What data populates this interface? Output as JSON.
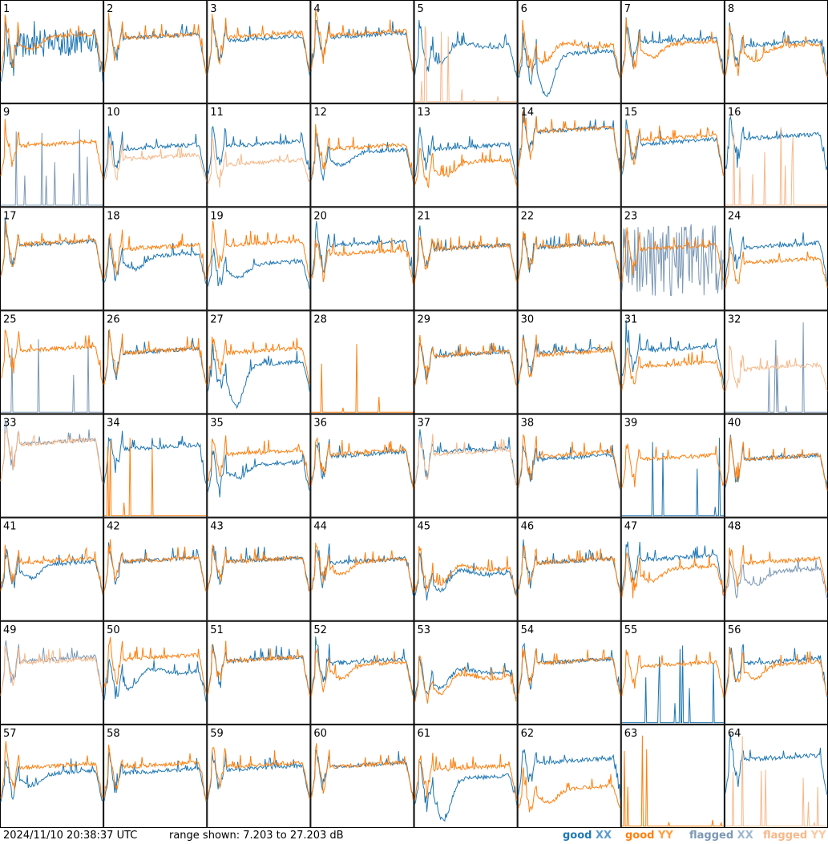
{
  "footer": {
    "timestamp": "2024/11/10 20:38:37 UTC",
    "range": "range shown: 7.203 to 27.203 dB"
  },
  "legend": [
    {
      "pre": "good ",
      "pol": "XX",
      "color": "#1f77b4",
      "pre_color": "#1f77b4",
      "pol_color": "#5a9bd0"
    },
    {
      "pre": "good ",
      "pol": "YY",
      "color": "#ff7f0e",
      "pre_color": "#ff7f0e",
      "pol_color": "#ff9f40"
    },
    {
      "pre": "flagged ",
      "pol": "XX",
      "color": "#7b98b5",
      "pre_color": "#7b98b5",
      "pol_color": "#9fb8cf"
    },
    {
      "pre": "flagged ",
      "pol": "YY",
      "color": "#f7b88a",
      "pre_color": "#f7b88a",
      "pol_color": "#f9c9a4"
    }
  ],
  "chart_data": {
    "type": "line",
    "grid": {
      "rows": 8,
      "cols": 8
    },
    "ylim_db": [
      7.203,
      27.203
    ],
    "colors": {
      "good_xx": "#1f77b4",
      "good_yy": "#ff7f0e",
      "flagged_xx": "#7b98b5",
      "flagged_yy": "#f7b88a"
    },
    "panels": [
      {
        "n": 1,
        "xx": "good",
        "yy": "good",
        "xx_shape": "spiky",
        "yy_shape": "dip",
        "xx_level": 0.55,
        "yy_level": 0.62
      },
      {
        "n": 2,
        "xx": "good",
        "yy": "good",
        "xx_shape": "normal",
        "yy_shape": "normal",
        "xx_level": 0.62,
        "yy_level": 0.62
      },
      {
        "n": 3,
        "xx": "good",
        "yy": "good",
        "xx_shape": "normal",
        "yy_shape": "normal",
        "xx_level": 0.6,
        "yy_level": 0.63
      },
      {
        "n": 4,
        "xx": "good",
        "yy": "good",
        "xx_shape": "normal",
        "yy_shape": "normal",
        "xx_level": 0.63,
        "yy_level": 0.65
      },
      {
        "n": 5,
        "xx": "good",
        "yy": "flagged",
        "xx_shape": "bowl",
        "yy_shape": "floor",
        "xx_level": 0.55,
        "yy_level": 0.02
      },
      {
        "n": 6,
        "xx": "good",
        "yy": "good",
        "xx_shape": "deepbowl",
        "yy_shape": "bowl",
        "xx_level": 0.45,
        "yy_level": 0.55
      },
      {
        "n": 7,
        "xx": "good",
        "yy": "good",
        "xx_shape": "normal",
        "yy_shape": "dip",
        "xx_level": 0.58,
        "yy_level": 0.55
      },
      {
        "n": 8,
        "xx": "good",
        "yy": "good",
        "xx_shape": "normal",
        "yy_shape": "dip",
        "xx_level": 0.55,
        "yy_level": 0.52
      },
      {
        "n": 9,
        "xx": "flagged",
        "yy": "good",
        "xx_shape": "floor",
        "yy_shape": "normal",
        "xx_level": 0.05,
        "yy_level": 0.58
      },
      {
        "n": 10,
        "xx": "good",
        "yy": "flagged",
        "xx_shape": "normal",
        "yy_shape": "normal",
        "xx_level": 0.55,
        "yy_level": 0.45
      },
      {
        "n": 11,
        "xx": "good",
        "yy": "flagged",
        "xx_shape": "normal",
        "yy_shape": "normal",
        "xx_level": 0.58,
        "yy_level": 0.4
      },
      {
        "n": 12,
        "xx": "good",
        "yy": "good",
        "xx_shape": "dip",
        "yy_shape": "normal",
        "xx_level": 0.5,
        "yy_level": 0.55
      },
      {
        "n": 13,
        "xx": "good",
        "yy": "good",
        "xx_shape": "normal",
        "yy_shape": "dip",
        "xx_level": 0.55,
        "yy_level": 0.4
      },
      {
        "n": 14,
        "xx": "good",
        "yy": "good",
        "xx_shape": "normal",
        "yy_shape": "normal",
        "xx_level": 0.72,
        "yy_level": 0.72
      },
      {
        "n": 15,
        "xx": "good",
        "yy": "good",
        "xx_shape": "normal",
        "yy_shape": "normal",
        "xx_level": 0.6,
        "yy_level": 0.64
      },
      {
        "n": 16,
        "xx": "good",
        "yy": "flagged",
        "xx_shape": "normal",
        "yy_shape": "floor",
        "xx_level": 0.65,
        "yy_level": 0.02
      },
      {
        "n": 17,
        "xx": "good",
        "yy": "good",
        "xx_shape": "normal",
        "yy_shape": "normal",
        "xx_level": 0.62,
        "yy_level": 0.63
      },
      {
        "n": 18,
        "xx": "good",
        "yy": "good",
        "xx_shape": "dip",
        "yy_shape": "normal",
        "xx_level": 0.5,
        "yy_level": 0.58
      },
      {
        "n": 19,
        "xx": "good",
        "yy": "good",
        "xx_shape": "dip",
        "yy_shape": "normal",
        "xx_level": 0.42,
        "yy_level": 0.62
      },
      {
        "n": 20,
        "xx": "good",
        "yy": "good",
        "xx_shape": "normal",
        "yy_shape": "normal",
        "xx_level": 0.62,
        "yy_level": 0.53
      },
      {
        "n": 21,
        "xx": "good",
        "yy": "good",
        "xx_shape": "normal",
        "yy_shape": "normal",
        "xx_level": 0.58,
        "yy_level": 0.58
      },
      {
        "n": 22,
        "xx": "good",
        "yy": "good",
        "xx_shape": "normal",
        "yy_shape": "normal",
        "xx_level": 0.6,
        "yy_level": 0.6
      },
      {
        "n": 23,
        "xx": "flagged",
        "yy": "good",
        "xx_shape": "noisy",
        "yy_shape": "normal",
        "xx_level": 0.4,
        "yy_level": 0.58
      },
      {
        "n": 24,
        "xx": "good",
        "yy": "good",
        "xx_shape": "normal",
        "yy_shape": "normal",
        "xx_level": 0.6,
        "yy_level": 0.45
      },
      {
        "n": 25,
        "xx": "flagged",
        "yy": "good",
        "xx_shape": "floor",
        "yy_shape": "normal",
        "xx_level": 0.02,
        "yy_level": 0.6
      },
      {
        "n": 26,
        "xx": "good",
        "yy": "good",
        "xx_shape": "normal",
        "yy_shape": "normal",
        "xx_level": 0.58,
        "yy_level": 0.58
      },
      {
        "n": 27,
        "xx": "good",
        "yy": "good",
        "xx_shape": "deepbowl",
        "yy_shape": "normal",
        "xx_level": 0.45,
        "yy_level": 0.58
      },
      {
        "n": 28,
        "xx": "none",
        "yy": "good",
        "xx_shape": "floor",
        "yy_shape": "floor",
        "xx_level": 0.0,
        "yy_level": 0.02
      },
      {
        "n": 29,
        "xx": "good",
        "yy": "good",
        "xx_shape": "normal",
        "yy_shape": "normal",
        "xx_level": 0.55,
        "yy_level": 0.55
      },
      {
        "n": 30,
        "xx": "good",
        "yy": "good",
        "xx_shape": "normal",
        "yy_shape": "normal",
        "xx_level": 0.58,
        "yy_level": 0.56
      },
      {
        "n": 31,
        "xx": "good",
        "yy": "good",
        "xx_shape": "normal",
        "yy_shape": "normal",
        "xx_level": 0.6,
        "yy_level": 0.45
      },
      {
        "n": 32,
        "xx": "flagged",
        "yy": "flagged",
        "xx_shape": "floor",
        "yy_shape": "normal",
        "xx_level": 0.02,
        "yy_level": 0.42
      },
      {
        "n": 33,
        "xx": "flagged",
        "yy": "flagged",
        "xx_shape": "normal",
        "yy_shape": "normal",
        "xx_level": 0.7,
        "yy_level": 0.7
      },
      {
        "n": 34,
        "xx": "good",
        "yy": "good",
        "xx_shape": "normal",
        "yy_shape": "floor",
        "xx_level": 0.65,
        "yy_level": 0.05
      },
      {
        "n": 35,
        "xx": "good",
        "yy": "good",
        "xx_shape": "dip",
        "yy_shape": "normal",
        "xx_level": 0.48,
        "yy_level": 0.6
      },
      {
        "n": 36,
        "xx": "good",
        "yy": "good",
        "xx_shape": "normal",
        "yy_shape": "normal",
        "xx_level": 0.58,
        "yy_level": 0.6
      },
      {
        "n": 37,
        "xx": "good",
        "yy": "flagged",
        "xx_shape": "normal",
        "yy_shape": "normal",
        "xx_level": 0.62,
        "yy_level": 0.6
      },
      {
        "n": 38,
        "xx": "good",
        "yy": "good",
        "xx_shape": "normal",
        "yy_shape": "normal",
        "xx_level": 0.55,
        "yy_level": 0.58
      },
      {
        "n": 39,
        "xx": "good",
        "yy": "good",
        "xx_shape": "floor",
        "yy_shape": "normal",
        "xx_level": 0.02,
        "yy_level": 0.55
      },
      {
        "n": 40,
        "xx": "good",
        "yy": "good",
        "xx_shape": "normal",
        "yy_shape": "normal",
        "xx_level": 0.55,
        "yy_level": 0.55
      },
      {
        "n": 41,
        "xx": "good",
        "yy": "good",
        "xx_shape": "dip",
        "yy_shape": "normal",
        "xx_level": 0.52,
        "yy_level": 0.55
      },
      {
        "n": 42,
        "xx": "good",
        "yy": "good",
        "xx_shape": "normal",
        "yy_shape": "normal",
        "xx_level": 0.56,
        "yy_level": 0.56
      },
      {
        "n": 43,
        "xx": "good",
        "yy": "good",
        "xx_shape": "normal",
        "yy_shape": "normal",
        "xx_level": 0.56,
        "yy_level": 0.56
      },
      {
        "n": 44,
        "xx": "good",
        "yy": "good",
        "xx_shape": "normal",
        "yy_shape": "dip",
        "xx_level": 0.55,
        "yy_level": 0.55
      },
      {
        "n": 45,
        "xx": "good",
        "yy": "good",
        "xx_shape": "bowl",
        "yy_shape": "bowl",
        "xx_level": 0.45,
        "yy_level": 0.5
      },
      {
        "n": 46,
        "xx": "good",
        "yy": "good",
        "xx_shape": "normal",
        "yy_shape": "normal",
        "xx_level": 0.55,
        "yy_level": 0.55
      },
      {
        "n": 47,
        "xx": "good",
        "yy": "good",
        "xx_shape": "normal",
        "yy_shape": "dip",
        "xx_level": 0.58,
        "yy_level": 0.48
      },
      {
        "n": 48,
        "xx": "flagged",
        "yy": "good",
        "xx_shape": "dip",
        "yy_shape": "normal",
        "xx_level": 0.45,
        "yy_level": 0.55
      },
      {
        "n": 49,
        "xx": "flagged",
        "yy": "flagged",
        "xx_shape": "normal",
        "yy_shape": "normal",
        "xx_level": 0.6,
        "yy_level": 0.58
      },
      {
        "n": 50,
        "xx": "good",
        "yy": "good",
        "xx_shape": "bowl",
        "yy_shape": "normal",
        "xx_level": 0.5,
        "yy_level": 0.62
      },
      {
        "n": 51,
        "xx": "good",
        "yy": "good",
        "xx_shape": "normal",
        "yy_shape": "normal",
        "xx_level": 0.6,
        "yy_level": 0.6
      },
      {
        "n": 52,
        "xx": "good",
        "yy": "good",
        "xx_shape": "normal",
        "yy_shape": "dip",
        "xx_level": 0.58,
        "yy_level": 0.55
      },
      {
        "n": 53,
        "xx": "good",
        "yy": "good",
        "xx_shape": "bowl",
        "yy_shape": "bowl",
        "xx_level": 0.5,
        "yy_level": 0.45
      },
      {
        "n": 54,
        "xx": "good",
        "yy": "good",
        "xx_shape": "normal",
        "yy_shape": "normal",
        "xx_level": 0.58,
        "yy_level": 0.58
      },
      {
        "n": 55,
        "xx": "good",
        "yy": "good",
        "xx_shape": "floor",
        "yy_shape": "normal",
        "xx_level": 0.05,
        "yy_level": 0.55
      },
      {
        "n": 56,
        "xx": "good",
        "yy": "good",
        "xx_shape": "normal",
        "yy_shape": "dip",
        "xx_level": 0.58,
        "yy_level": 0.55
      },
      {
        "n": 57,
        "xx": "good",
        "yy": "good",
        "xx_shape": "dip",
        "yy_shape": "normal",
        "xx_level": 0.5,
        "yy_level": 0.57
      },
      {
        "n": 58,
        "xx": "good",
        "yy": "good",
        "xx_shape": "normal",
        "yy_shape": "normal",
        "xx_level": 0.52,
        "yy_level": 0.58
      },
      {
        "n": 59,
        "xx": "good",
        "yy": "good",
        "xx_shape": "normal",
        "yy_shape": "normal",
        "xx_level": 0.55,
        "yy_level": 0.58
      },
      {
        "n": 60,
        "xx": "good",
        "yy": "good",
        "xx_shape": "normal",
        "yy_shape": "normal",
        "xx_level": 0.58,
        "yy_level": 0.58
      },
      {
        "n": 61,
        "xx": "good",
        "yy": "good",
        "xx_shape": "deepbowl",
        "yy_shape": "normal",
        "xx_level": 0.45,
        "yy_level": 0.55
      },
      {
        "n": 62,
        "xx": "good",
        "yy": "good",
        "xx_shape": "normal",
        "yy_shape": "dip",
        "xx_level": 0.62,
        "yy_level": 0.35
      },
      {
        "n": 63,
        "xx": "none",
        "yy": "good",
        "xx_shape": "floor",
        "yy_shape": "floor",
        "xx_level": 0.0,
        "yy_level": 0.02
      },
      {
        "n": 64,
        "xx": "good",
        "yy": "flagged",
        "xx_shape": "normal",
        "yy_shape": "floor",
        "xx_level": 0.65,
        "yy_level": 0.02
      }
    ]
  }
}
